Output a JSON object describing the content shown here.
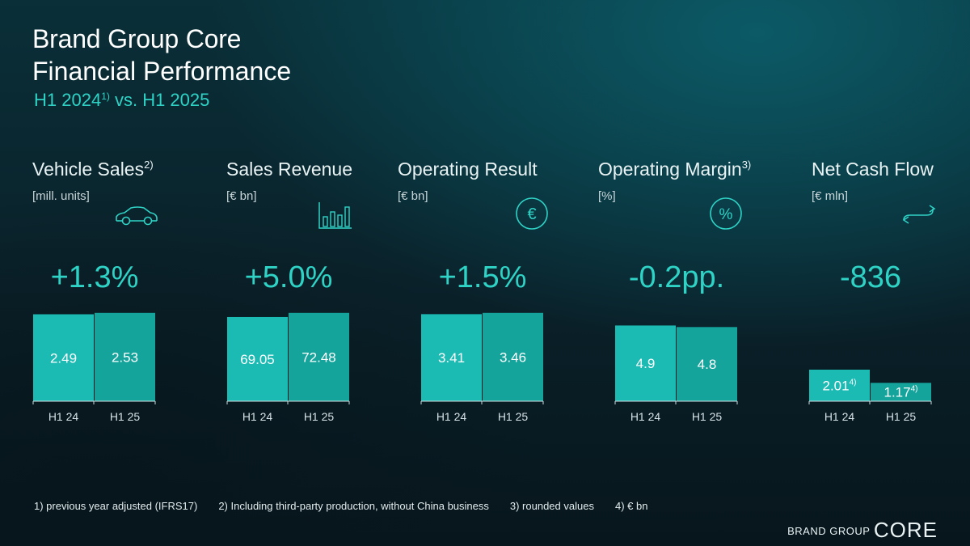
{
  "header": {
    "title_line1": "Brand Group Core",
    "title_line2": "Financial Performance",
    "period_prefix": "H1 2024",
    "period_sup": "1)",
    "period_suffix": " vs. H1 2025"
  },
  "colors": {
    "accent": "#2fd3c6",
    "bar_h1_24": "#1bbab3",
    "bar_h1_25": "#14a49c"
  },
  "kpis": [
    {
      "name": "Vehicle Sales",
      "name_sup": "2)",
      "unit": "[mill. units]",
      "icon": "car-icon",
      "change": "+1.3%"
    },
    {
      "name": "Sales Revenue",
      "name_sup": "",
      "unit": "[€ bn]",
      "icon": "bar-chart-icon",
      "change": "+5.0%"
    },
    {
      "name": "Operating Result",
      "name_sup": "",
      "unit": "[€ bn]",
      "icon": "euro-icon",
      "change": "+1.5%"
    },
    {
      "name": "Operating Margin",
      "name_sup": "3)",
      "unit": "[%]",
      "icon": "percent-icon",
      "change": "-0.2pp."
    },
    {
      "name": "Net Cash Flow",
      "name_sup": "",
      "unit": "[€ mln]",
      "icon": "cash-flow-icon",
      "change": "-836"
    }
  ],
  "chart_data": [
    {
      "type": "bar",
      "title": "Vehicle Sales",
      "categories": [
        "H1 24",
        "H1 25"
      ],
      "values": [
        2.49,
        2.53
      ],
      "labels": [
        "2.49",
        "2.53"
      ],
      "label_sups": [
        "",
        ""
      ]
    },
    {
      "type": "bar",
      "title": "Sales Revenue",
      "categories": [
        "H1 24",
        "H1 25"
      ],
      "values": [
        69.05,
        72.48
      ],
      "labels": [
        "69.05",
        "72.48"
      ],
      "label_sups": [
        "",
        ""
      ]
    },
    {
      "type": "bar",
      "title": "Operating Result",
      "categories": [
        "H1 24",
        "H1 25"
      ],
      "values": [
        3.41,
        3.46
      ],
      "labels": [
        "3.41",
        "3.46"
      ],
      "label_sups": [
        "",
        ""
      ]
    },
    {
      "type": "bar",
      "title": "Operating Margin",
      "categories": [
        "H1 24",
        "H1 25"
      ],
      "values": [
        4.9,
        4.8
      ],
      "labels": [
        "4.9",
        "4.8"
      ],
      "label_sups": [
        "",
        ""
      ]
    },
    {
      "type": "bar",
      "title": "Net Cash Flow",
      "categories": [
        "H1 24",
        "H1 25"
      ],
      "values": [
        2.01,
        1.17
      ],
      "labels": [
        "2.01",
        "1.17"
      ],
      "label_sups": [
        "4)",
        "4)"
      ]
    }
  ],
  "footnotes": [
    "1) previous year adjusted (IFRS17)",
    "2) Including third-party production, without China business",
    "3) rounded values",
    "4) € bn"
  ],
  "brand": {
    "small": "BRAND GROUP",
    "big": "CORE"
  }
}
